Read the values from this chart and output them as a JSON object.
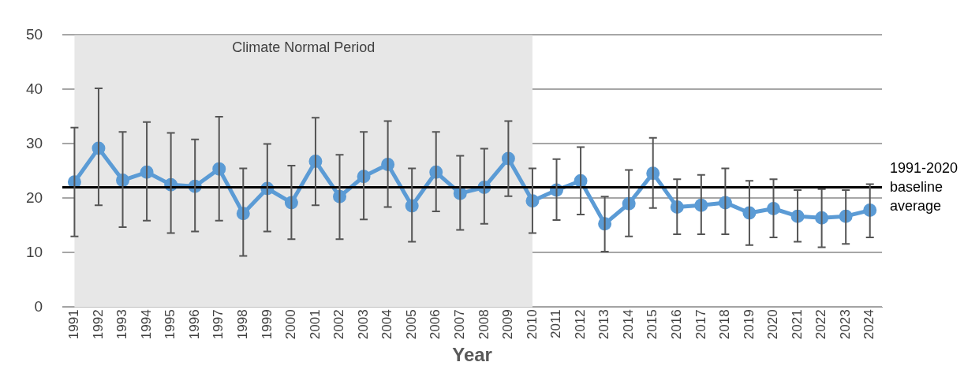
{
  "chart_data": {
    "type": "line",
    "xlabel": "Year",
    "categories": [
      "1991",
      "1992",
      "1993",
      "1994",
      "1995",
      "1996",
      "1997",
      "1998",
      "1999",
      "2000",
      "2001",
      "2002",
      "2003",
      "2004",
      "2005",
      "2006",
      "2007",
      "2008",
      "2009",
      "2010",
      "2011",
      "2012",
      "2013",
      "2014",
      "2015",
      "2016",
      "2017",
      "2018",
      "2019",
      "2020",
      "2021",
      "2022",
      "2023",
      "2024"
    ],
    "series": [
      {
        "color": "#5b9bd5",
        "values": [
          23,
          29.2,
          23.3,
          24.8,
          22.5,
          22.2,
          25.4,
          17.2,
          21.8,
          19.2,
          26.8,
          20.3,
          24,
          26.2,
          18.6,
          24.8,
          20.9,
          22,
          27.3,
          19.5,
          21.5,
          23.2,
          15.3,
          19,
          24.6,
          18.4,
          18.7,
          19.2,
          17.3,
          18.1,
          16.7,
          16.4,
          16.7,
          17.8
        ],
        "errors": [
          [
            13,
            33
          ],
          [
            18.7,
            40.2
          ],
          [
            14.7,
            32.2
          ],
          [
            15.9,
            34
          ],
          [
            13.6,
            32
          ],
          [
            13.9,
            30.8
          ],
          [
            15.9,
            35
          ],
          [
            9.4,
            25.5
          ],
          [
            13.9,
            30
          ],
          [
            12.5,
            26
          ],
          [
            18.7,
            34.8
          ],
          [
            12.5,
            28
          ],
          [
            16.1,
            32.2
          ],
          [
            18.4,
            34.2
          ],
          [
            12,
            25.5
          ],
          [
            17.6,
            32.2
          ],
          [
            14.2,
            27.8
          ],
          [
            15.3,
            29.1
          ],
          [
            20.4,
            34.2
          ],
          [
            13.6,
            25.5
          ],
          [
            16,
            27.2
          ],
          [
            17,
            29.4
          ],
          [
            10.2,
            20.3
          ],
          [
            13,
            25.2
          ],
          [
            18.2,
            31.1
          ],
          [
            13.4,
            23.5
          ],
          [
            13.4,
            24.3
          ],
          [
            13.4,
            25.5
          ],
          [
            11.4,
            23.2
          ],
          [
            12.8,
            23.5
          ],
          [
            12,
            21.5
          ],
          [
            11,
            21.7
          ],
          [
            11.6,
            21.5
          ],
          [
            12.8,
            22.6
          ]
        ]
      }
    ],
    "ylim": [
      0,
      50
    ],
    "yticks": [
      0,
      10,
      20,
      30,
      40,
      50
    ],
    "grid": "y",
    "legend": false,
    "marker": "circle",
    "line_style": "solid",
    "ref_lines": [
      {
        "axis": "y",
        "value": 22,
        "label": "1991-2020 baseline average",
        "color": "#000000"
      }
    ],
    "bands": [
      {
        "axis": "x",
        "from": "1991",
        "to": "2010",
        "label": "Climate Normal Period",
        "color": "#e7e7e7"
      }
    ]
  }
}
